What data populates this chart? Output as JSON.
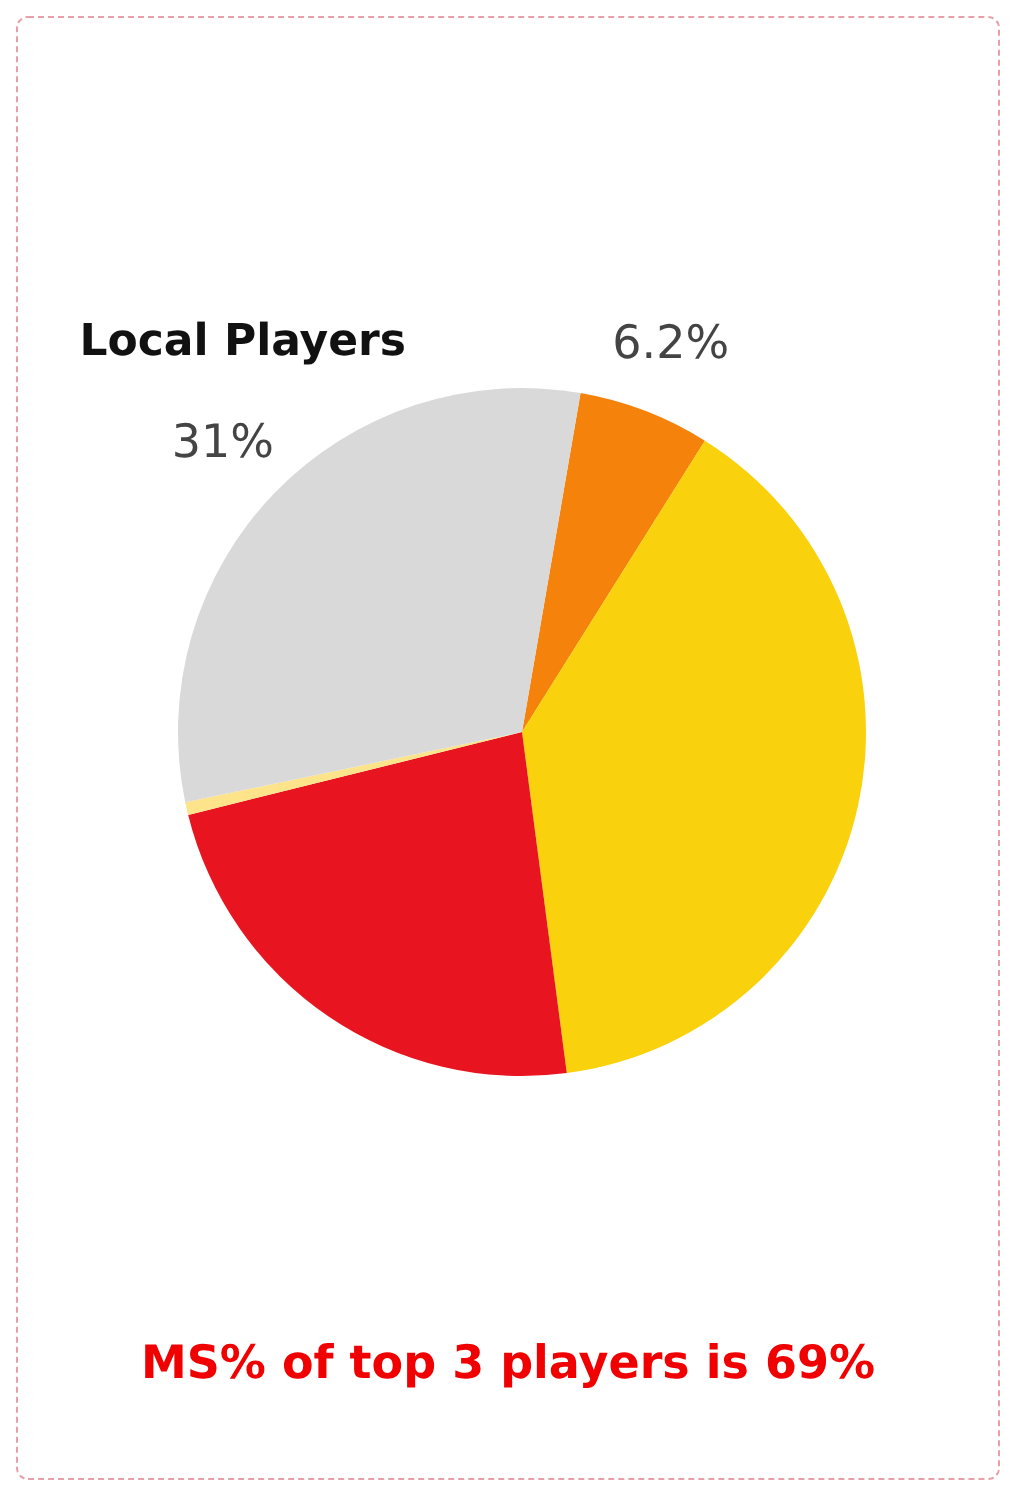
{
  "chart_data": {
    "type": "pie",
    "categories": [
      null,
      null,
      null,
      null,
      "Local Players"
    ],
    "values": [
      6.2,
      39,
      23.2,
      0.6,
      31
    ],
    "colors": [
      "#f5820a",
      "#f9d10c",
      "#e8141f",
      "#fde48a",
      "#d9d9d9"
    ],
    "value_labels": [
      "6.2%",
      null,
      null,
      null,
      "31%"
    ],
    "annotations": [
      "MS% of top 3 players is 69%"
    ]
  }
}
